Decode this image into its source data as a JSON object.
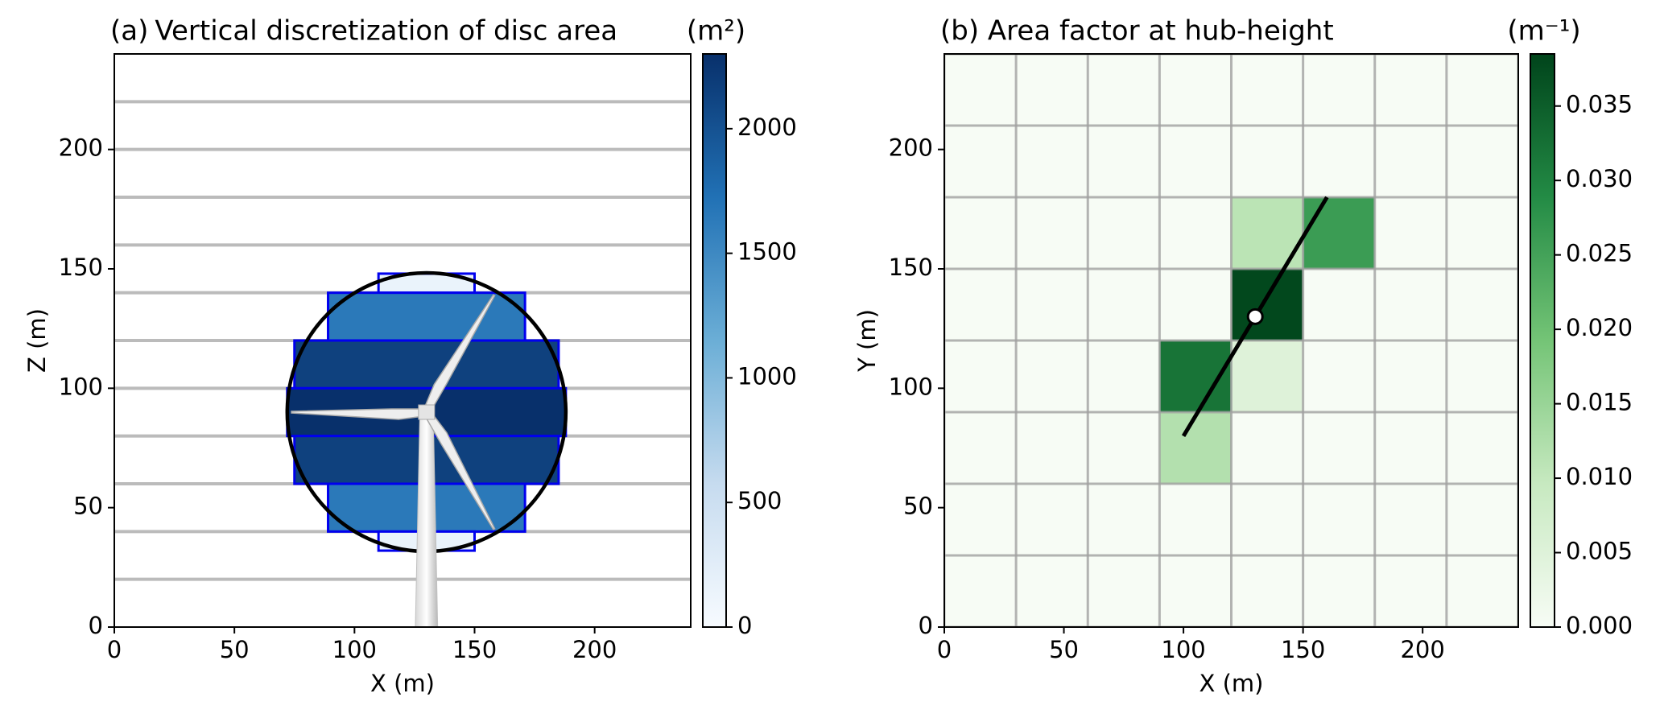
{
  "chart_data": [
    {
      "type": "strips",
      "panel_label": "(a)",
      "title": "Vertical discretization of disc area",
      "xlabel": "X (m)",
      "ylabel": "Z (m)",
      "xlim": [
        0,
        240
      ],
      "ylim": [
        0,
        240
      ],
      "xticks": [
        0,
        50,
        100,
        150,
        200
      ],
      "yticks": [
        0,
        50,
        100,
        150,
        200
      ],
      "level_lines": [
        20,
        40,
        60,
        80,
        100,
        120,
        140,
        160,
        180,
        200,
        220
      ],
      "level_line_color": "#bbbbbb",
      "edge_color": "#0000ee",
      "layers": [
        {
          "z": [
            140,
            148
          ],
          "x": [
            110,
            150
          ],
          "value": 150
        },
        {
          "z": [
            120,
            140
          ],
          "x": [
            89,
            171
          ],
          "value": 1650
        },
        {
          "z": [
            100,
            120
          ],
          "x": [
            75,
            185
          ],
          "value": 2150
        },
        {
          "z": [
            80,
            100
          ],
          "x": [
            72,
            188
          ],
          "value": 2300
        },
        {
          "z": [
            60,
            80
          ],
          "x": [
            75,
            185
          ],
          "value": 2150
        },
        {
          "z": [
            40,
            60
          ],
          "x": [
            89,
            171
          ],
          "value": 1650
        },
        {
          "z": [
            32,
            40
          ],
          "x": [
            110,
            150
          ],
          "value": 150
        }
      ],
      "rotor": {
        "x": 130,
        "z": 90,
        "radius": 58
      },
      "colorbar": {
        "label": "(m²)",
        "lim": [
          0,
          2300
        ],
        "ticks": [
          0,
          500,
          1000,
          1500,
          2000
        ],
        "colormap": [
          "#f7fbff",
          "#c6dbef",
          "#6baed6",
          "#2171b5",
          "#08306b"
        ]
      }
    },
    {
      "type": "heatmap",
      "title": "(b) Area factor at hub-height",
      "xlabel": "X (m)",
      "ylabel": "Y (m)",
      "xlim": [
        0,
        240
      ],
      "ylim": [
        0,
        240
      ],
      "xticks": [
        0,
        50,
        100,
        150,
        200
      ],
      "yticks": [
        0,
        50,
        100,
        150,
        200
      ],
      "x_edges": [
        0,
        30,
        60,
        90,
        120,
        150,
        180,
        210,
        240
      ],
      "y_edges": [
        0,
        30,
        60,
        90,
        120,
        150,
        180,
        210,
        240
      ],
      "values": [
        [
          0,
          0,
          0,
          0,
          0,
          0,
          0,
          0
        ],
        [
          0,
          0,
          0,
          0,
          0,
          0,
          0,
          0
        ],
        [
          0,
          0,
          0,
          0.012,
          0,
          0,
          0,
          0
        ],
        [
          0,
          0,
          0,
          0.032,
          0.005,
          0,
          0,
          0
        ],
        [
          0,
          0,
          0,
          0,
          0.038,
          0,
          0,
          0
        ],
        [
          0,
          0,
          0,
          0,
          0.011,
          0.026,
          0,
          0
        ],
        [
          0,
          0,
          0,
          0,
          0,
          0,
          0,
          0
        ],
        [
          0,
          0,
          0,
          0,
          0,
          0,
          0,
          0
        ]
      ],
      "cell_line_color": "#a0a0a0",
      "line": {
        "x": [
          100,
          160
        ],
        "y": [
          80,
          180
        ]
      },
      "hub": {
        "x": 130,
        "y": 130
      },
      "colorbar": {
        "label": "(m⁻¹)",
        "lim": [
          0,
          0.0385
        ],
        "ticks": [
          {
            "value": 0,
            "label": "0.000"
          },
          0.005,
          {
            "value": 0.01,
            "label": "0.010"
          },
          0.015,
          {
            "value": 0.02,
            "label": "0.020"
          },
          0.025,
          {
            "value": 0.03,
            "label": "0.030"
          },
          0.035
        ],
        "colormap": [
          "#f7fcf5",
          "#c7e9c0",
          "#74c476",
          "#238b45",
          "#00441b"
        ]
      }
    }
  ]
}
